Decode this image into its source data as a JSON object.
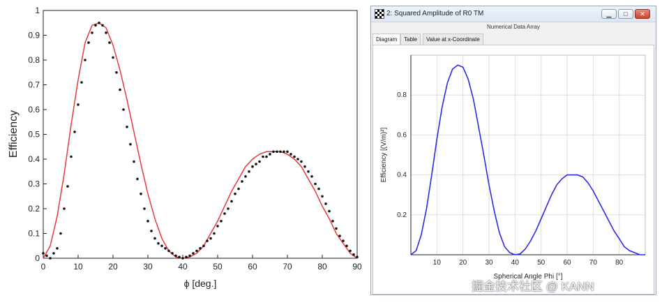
{
  "left_plot": {
    "xlabel": "ϕ [deg.]",
    "ylabel": "Efficiency",
    "x_ticks": [
      "0",
      "10",
      "20",
      "30",
      "40",
      "50",
      "60",
      "70",
      "80",
      "90"
    ],
    "y_ticks": [
      "0",
      "0.1",
      "0.2",
      "0.3",
      "0.4",
      "0.5",
      "0.6",
      "0.7",
      "0.8",
      "0.9",
      "1"
    ],
    "colors": {
      "line": "#e63a3a",
      "points": "#111111"
    }
  },
  "right_window": {
    "title": "2: Squared Amplitude of R0 TM",
    "subtitle": "Numerical Data Array",
    "tabs": [
      "Diagram",
      "Table",
      "Value at x-Coordinate"
    ],
    "active_tab": "Diagram",
    "xlabel": "Spherical Angle Phi [°]",
    "ylabel": "Efficiency [(V/m)²]",
    "x_ticks": [
      "10",
      "20",
      "30",
      "40",
      "50",
      "60",
      "70",
      "80"
    ],
    "y_ticks": [
      "0.2",
      "0.4",
      "0.6",
      "0.8"
    ],
    "line_color": "#2a2ae6"
  },
  "watermark": "掘金技术社区 @ KANN",
  "chart_data": [
    {
      "type": "line",
      "xlabel": "ϕ [deg.]",
      "ylabel": "Efficiency",
      "xlim": [
        0,
        90
      ],
      "ylim": [
        0,
        1
      ],
      "grid": false,
      "series": [
        {
          "style": "line",
          "x": [
            0,
            2,
            4,
            6,
            8,
            10,
            12,
            14,
            16,
            18,
            20,
            22,
            24,
            26,
            28,
            30,
            32,
            34,
            36,
            38,
            40,
            42,
            44,
            46,
            48,
            50,
            52,
            54,
            56,
            58,
            60,
            62,
            64,
            66,
            68,
            70,
            72,
            74,
            76,
            78,
            80,
            82,
            84,
            86,
            88,
            90
          ],
          "values": [
            0.0,
            0.05,
            0.17,
            0.34,
            0.54,
            0.72,
            0.87,
            0.94,
            0.95,
            0.93,
            0.86,
            0.76,
            0.64,
            0.51,
            0.38,
            0.26,
            0.16,
            0.08,
            0.03,
            0.005,
            0.0,
            0.005,
            0.02,
            0.05,
            0.1,
            0.15,
            0.21,
            0.27,
            0.32,
            0.37,
            0.4,
            0.42,
            0.43,
            0.43,
            0.43,
            0.42,
            0.4,
            0.37,
            0.32,
            0.27,
            0.21,
            0.16,
            0.1,
            0.06,
            0.02,
            0.0
          ]
        },
        {
          "style": "points",
          "x": [
            0,
            1,
            2,
            3,
            4,
            5,
            6,
            7,
            8,
            9,
            10,
            11,
            12,
            13,
            14,
            15,
            16,
            17,
            18,
            19,
            20,
            21,
            22,
            23,
            24,
            25,
            26,
            27,
            28,
            29,
            30,
            31,
            32,
            33,
            34,
            35,
            36,
            37,
            38,
            39,
            40,
            41,
            42,
            43,
            44,
            45,
            46,
            47,
            48,
            49,
            50,
            51,
            52,
            53,
            54,
            55,
            56,
            57,
            58,
            59,
            60,
            61,
            62,
            63,
            64,
            65,
            66,
            67,
            68,
            69,
            70,
            71,
            72,
            73,
            74,
            75,
            76,
            77,
            78,
            79,
            80,
            81,
            82,
            83,
            84,
            85,
            86,
            87,
            88,
            89,
            90
          ],
          "values": [
            0.02,
            0.01,
            0.0,
            0.02,
            0.04,
            0.1,
            0.2,
            0.29,
            0.41,
            0.51,
            0.62,
            0.71,
            0.8,
            0.87,
            0.91,
            0.94,
            0.95,
            0.94,
            0.91,
            0.87,
            0.81,
            0.75,
            0.68,
            0.6,
            0.53,
            0.46,
            0.39,
            0.32,
            0.26,
            0.2,
            0.15,
            0.11,
            0.08,
            0.06,
            0.05,
            0.04,
            0.03,
            0.02,
            0.01,
            0.005,
            0.0,
            0.005,
            0.01,
            0.02,
            0.03,
            0.04,
            0.05,
            0.07,
            0.08,
            0.1,
            0.13,
            0.15,
            0.18,
            0.2,
            0.23,
            0.26,
            0.28,
            0.31,
            0.33,
            0.35,
            0.37,
            0.38,
            0.39,
            0.41,
            0.41,
            0.42,
            0.43,
            0.43,
            0.43,
            0.43,
            0.43,
            0.42,
            0.41,
            0.4,
            0.39,
            0.37,
            0.35,
            0.33,
            0.3,
            0.28,
            0.25,
            0.22,
            0.19,
            0.15,
            0.12,
            0.09,
            0.07,
            0.05,
            0.03,
            0.015,
            0.005
          ]
        }
      ]
    },
    {
      "type": "line",
      "xlabel": "Spherical Angle Phi [°]",
      "ylabel": "Efficiency [(V/m)²]",
      "xlim": [
        0,
        90
      ],
      "ylim": [
        0,
        1
      ],
      "grid": true,
      "series": [
        {
          "x": [
            0,
            2,
            4,
            6,
            8,
            10,
            12,
            14,
            16,
            18,
            20,
            22,
            24,
            26,
            28,
            30,
            32,
            34,
            36,
            38,
            40,
            42,
            44,
            46,
            48,
            50,
            52,
            54,
            56,
            58,
            60,
            62,
            64,
            66,
            68,
            70,
            72,
            74,
            76,
            78,
            80,
            82,
            84,
            86,
            88,
            90
          ],
          "values": [
            0.0,
            0.02,
            0.1,
            0.23,
            0.4,
            0.58,
            0.74,
            0.86,
            0.93,
            0.95,
            0.94,
            0.88,
            0.78,
            0.64,
            0.5,
            0.35,
            0.22,
            0.11,
            0.04,
            0.01,
            0.0,
            0.005,
            0.03,
            0.07,
            0.12,
            0.18,
            0.24,
            0.3,
            0.35,
            0.38,
            0.4,
            0.4,
            0.4,
            0.39,
            0.36,
            0.32,
            0.27,
            0.22,
            0.17,
            0.12,
            0.08,
            0.04,
            0.02,
            0.01,
            0.0,
            0.0
          ]
        }
      ]
    }
  ]
}
